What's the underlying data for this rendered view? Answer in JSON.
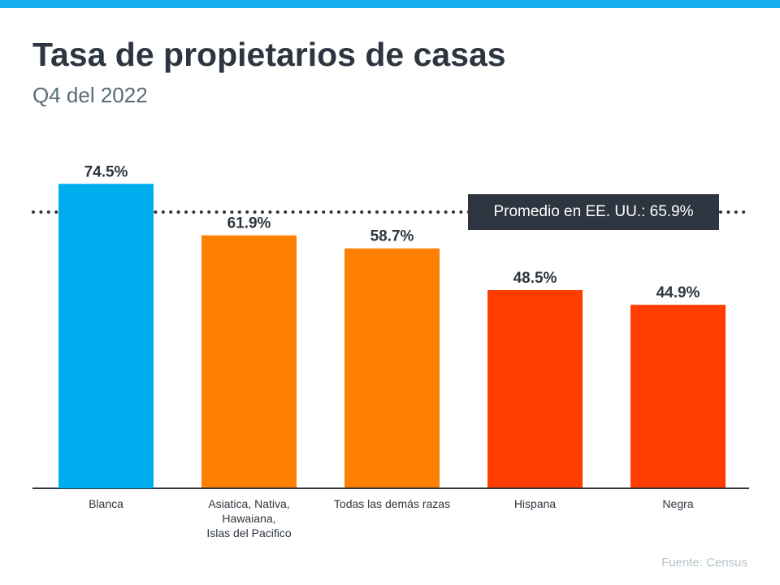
{
  "title": "Tasa de propietarios de casas",
  "subtitle": "Q4 del 2022",
  "source": "Fuente:  Census",
  "chart_data": {
    "type": "bar",
    "categories": [
      "Blanca",
      "Asiatica, Nativa,\nHawaiana,\nIslas del Pacifico",
      "Todas las demás razas",
      "Hispana",
      "Negra"
    ],
    "values": [
      74.5,
      61.9,
      58.7,
      48.5,
      44.9
    ],
    "data_labels": [
      "74.5%",
      "61.9%",
      "58.7%",
      "48.5%",
      "44.9%"
    ],
    "colors": [
      "#00aeef",
      "#ff8000",
      "#ff8000",
      "#ff3d00",
      "#ff3d00"
    ],
    "reference_line": {
      "value": 65.9,
      "label": "Promedio en EE. UU.: 65.9%",
      "style": "dotted",
      "color": "#2d3640"
    },
    "ylim": [
      0,
      80
    ],
    "grid": false,
    "xlabel": "",
    "ylabel": ""
  }
}
